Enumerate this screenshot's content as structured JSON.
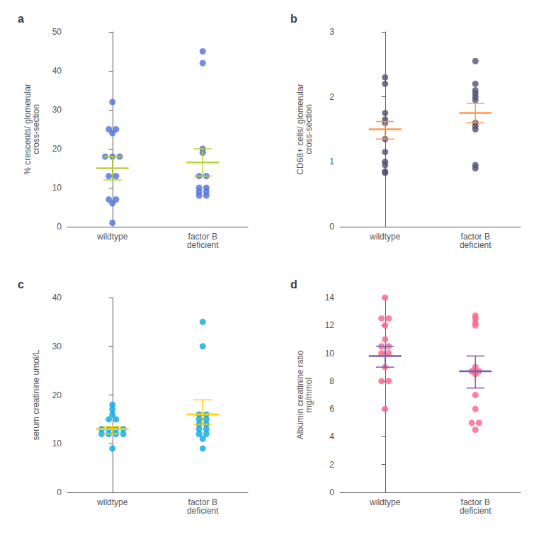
{
  "chart_data": [
    {
      "type": "scatter",
      "title": "a",
      "ylabel": "% crescents/ glomerular\ncross-section",
      "categories": [
        "wildtype",
        "factor B\ndeficient"
      ],
      "values": [
        [
          32,
          25,
          24,
          25,
          18,
          18,
          18,
          13,
          13,
          7,
          7,
          6,
          1
        ],
        [
          45,
          42,
          20,
          19,
          13,
          13,
          10,
          10,
          9,
          9,
          8,
          8
        ]
      ],
      "mean": [
        15,
        16.5
      ],
      "sem_low": [
        12,
        13
      ],
      "sem_high": [
        18,
        20
      ],
      "ylim": [
        0,
        50
      ],
      "yticks": [
        0,
        10,
        20,
        30,
        40,
        50
      ],
      "grid": false
    },
    {
      "type": "scatter",
      "title": "b",
      "ylabel": "CD68+ cells/ glomerular\ncross-section",
      "categories": [
        "wildtype",
        "factor B\ndeficient"
      ],
      "values": [
        [
          2.3,
          2.2,
          1.75,
          1.65,
          1.6,
          1.35,
          1.15,
          1.0,
          0.95,
          0.85,
          0.83
        ],
        [
          2.55,
          2.2,
          2.1,
          2.05,
          2.0,
          1.95,
          1.6,
          1.55,
          1.5,
          0.95,
          0.9
        ]
      ],
      "mean": [
        1.5,
        1.75
      ],
      "sem_low": [
        1.35,
        1.6
      ],
      "sem_high": [
        1.62,
        1.9
      ],
      "ylim": [
        0,
        3
      ],
      "yticks": [
        0,
        1,
        2,
        3
      ],
      "grid": false
    },
    {
      "type": "scatter",
      "title": "c",
      "ylabel": "serum creatinine umol/L",
      "categories": [
        "wildtype",
        "factor B\ndeficient"
      ],
      "values": [
        [
          18,
          17,
          16,
          15,
          15,
          13,
          13,
          13,
          13,
          12,
          12,
          12,
          12,
          9
        ],
        [
          35,
          30,
          16,
          16,
          15,
          15,
          14,
          14,
          13,
          13,
          12,
          12,
          11,
          9
        ]
      ],
      "mean": [
        13,
        16
      ],
      "sem_low": [
        12,
        14
      ],
      "sem_high": [
        13.5,
        19
      ],
      "ylim": [
        0,
        40
      ],
      "yticks": [
        0,
        10,
        20,
        30,
        40
      ],
      "grid": false
    },
    {
      "type": "scatter",
      "title": "d",
      "ylabel": "Albumin creatinine ratio\nmg/mmol",
      "categories": [
        "wildtype",
        "factor B\ndeficient"
      ],
      "values": [
        [
          14,
          12.5,
          12.5,
          12,
          11,
          10.5,
          10.5,
          10,
          10,
          9,
          8,
          8,
          6
        ],
        [
          12.7,
          12.2,
          12.5,
          12.0,
          8.7,
          8.5,
          7.0,
          6.0,
          5.0,
          5.0,
          4.5,
          9.0,
          8.7
        ]
      ],
      "mean": [
        9.8,
        8.7
      ],
      "sem_low": [
        9.0,
        7.5
      ],
      "sem_high": [
        10.5,
        9.8
      ],
      "ylim": [
        0,
        14
      ],
      "yticks": [
        0,
        2,
        4,
        6,
        8,
        10,
        12,
        14
      ],
      "grid": false
    }
  ]
}
